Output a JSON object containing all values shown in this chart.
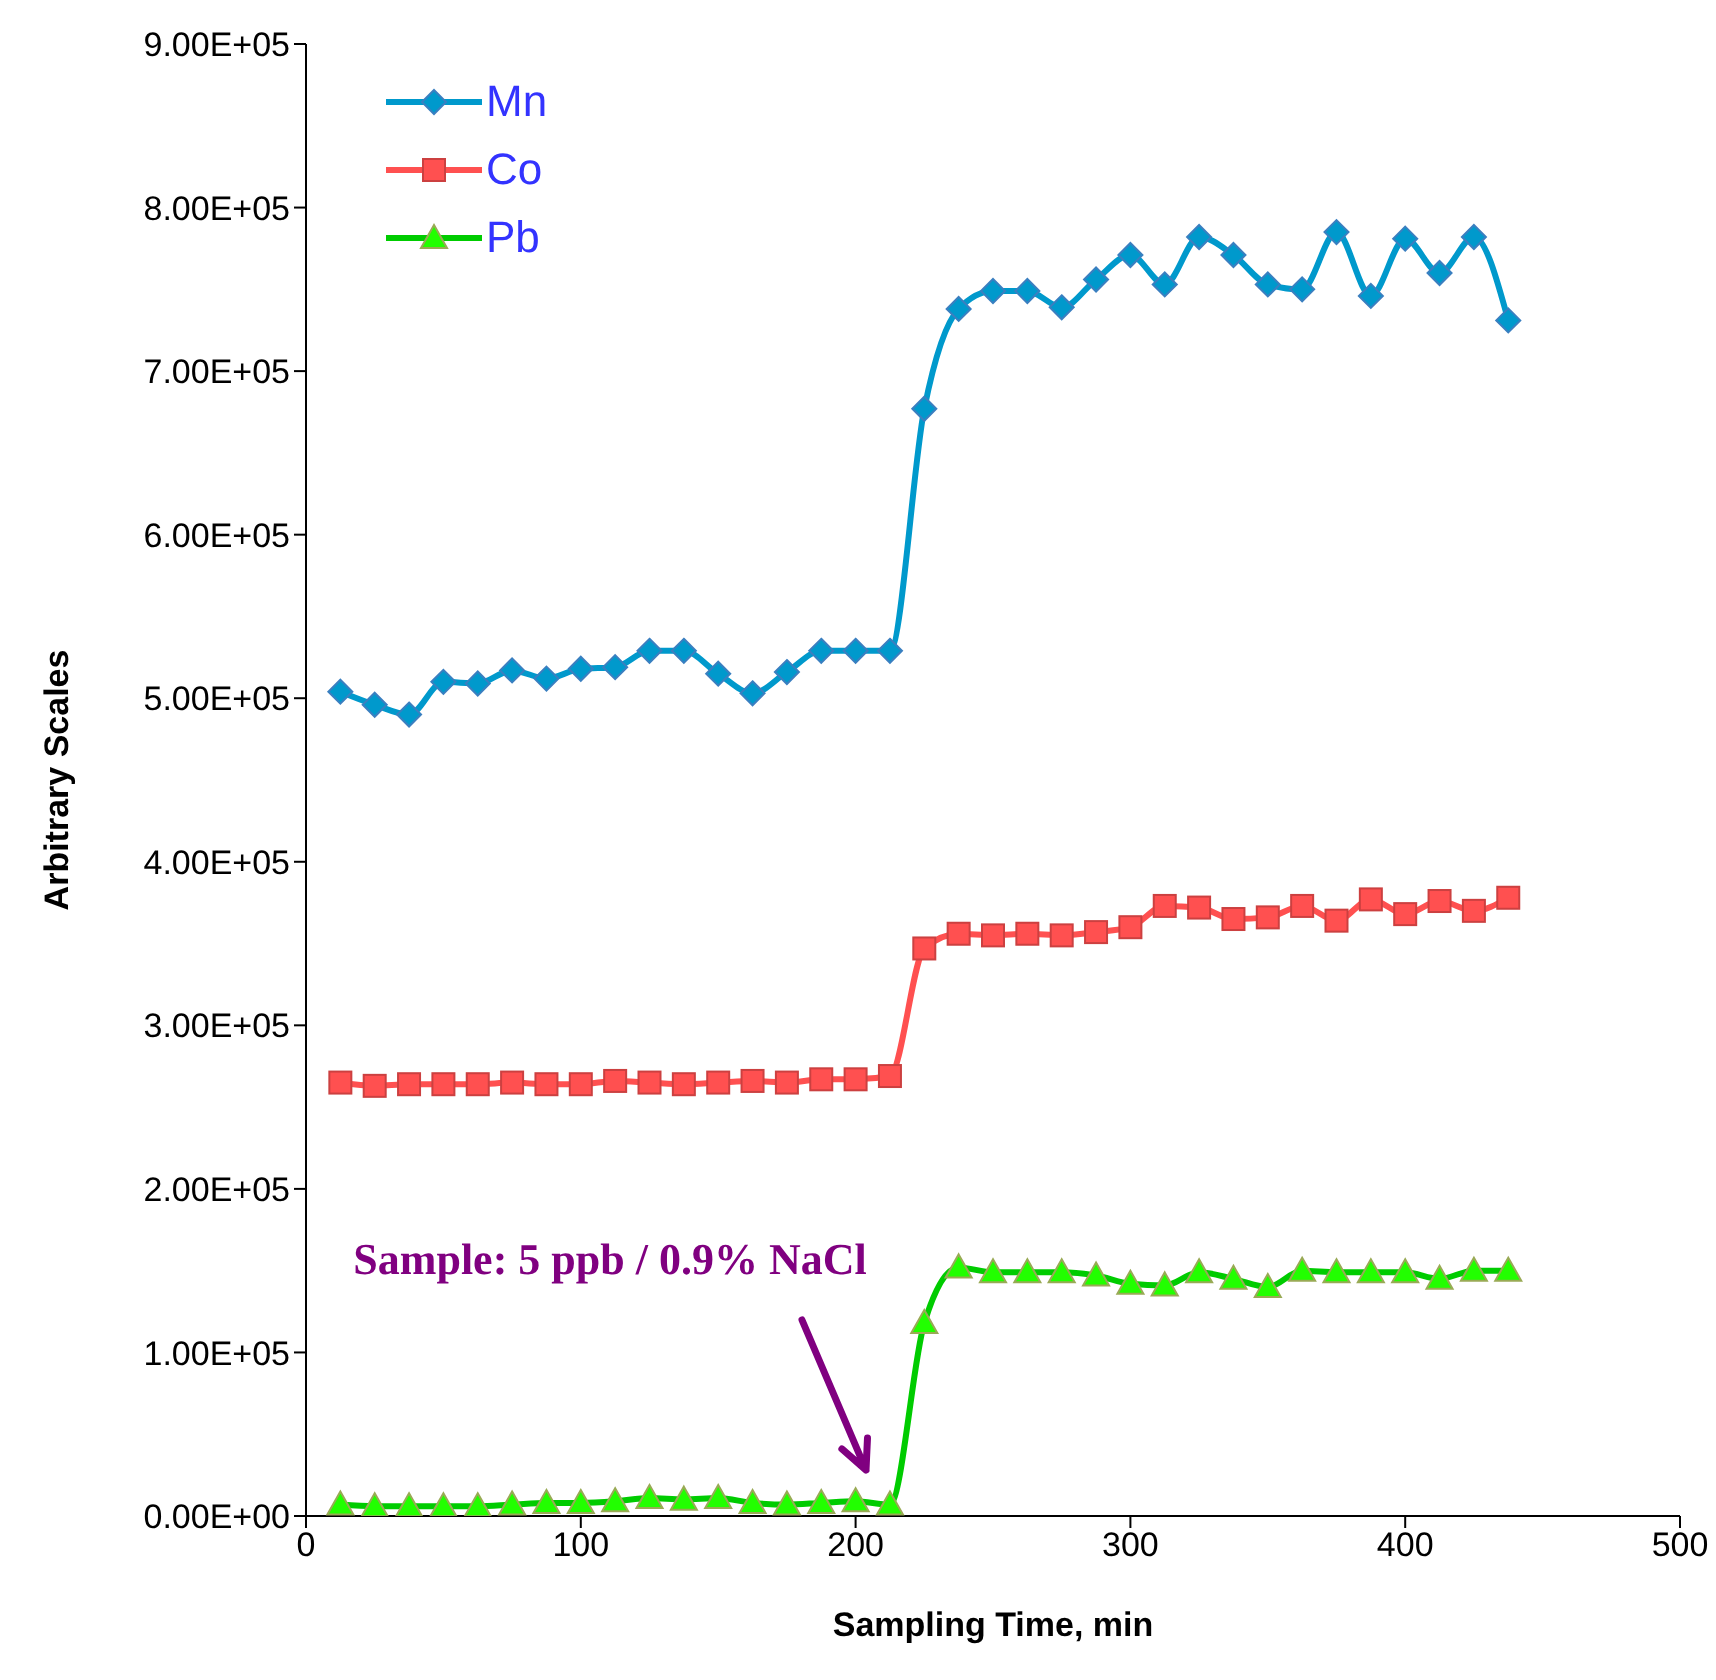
{
  "chart_data": {
    "type": "line",
    "xlabel": "Sampling Time, min",
    "ylabel": "Arbitrary Scales",
    "x": [
      12.5,
      25,
      37.5,
      50,
      62.5,
      75,
      87.5,
      100,
      112.5,
      125,
      137.5,
      150,
      162.5,
      175,
      187.5,
      200,
      212.5,
      225,
      237.5,
      250,
      262.5,
      275,
      287.5,
      300,
      312.5,
      325,
      337.5,
      350,
      362.5,
      375,
      387.5,
      400,
      412.5,
      425,
      437.5
    ],
    "series": [
      {
        "name": "Mn",
        "color": "#0099cc",
        "marker": "diamond",
        "values": [
          504000,
          496000,
          490000,
          510000,
          509000,
          517000,
          512000,
          518000,
          519000,
          529000,
          529000,
          515000,
          503000,
          516000,
          529000,
          529000,
          529000,
          677000,
          738000,
          749000,
          749000,
          739000,
          756000,
          771000,
          753000,
          782000,
          771000,
          753000,
          750000,
          785000,
          746000,
          781000,
          760000,
          782000,
          731000
        ]
      },
      {
        "name": "Co",
        "color": "#ff5050",
        "marker": "square",
        "values": [
          265000,
          263000,
          264000,
          264000,
          264000,
          265000,
          264000,
          264000,
          266000,
          265000,
          264000,
          265000,
          266000,
          265000,
          267000,
          267000,
          269000,
          347000,
          356000,
          355000,
          356000,
          355000,
          357000,
          360000,
          373000,
          372000,
          365000,
          366000,
          373000,
          364000,
          377000,
          368000,
          376000,
          370000,
          378000
        ]
      },
      {
        "name": "Pb",
        "color": "#00cc00",
        "marker": "triangle",
        "values": [
          7000,
          6000,
          6000,
          6000,
          6000,
          7000,
          8000,
          8000,
          9000,
          11000,
          10000,
          11000,
          8000,
          7000,
          8000,
          9000,
          7000,
          118000,
          152000,
          149000,
          149000,
          149000,
          147000,
          142000,
          141000,
          149000,
          145000,
          140000,
          150000,
          149000,
          149000,
          149000,
          145000,
          150000,
          150000
        ]
      }
    ],
    "xlim": [
      0,
      500
    ],
    "xticks": [
      0,
      100,
      200,
      300,
      400,
      500
    ],
    "ylim": [
      0,
      900000
    ],
    "yticks": [
      {
        "value": 0,
        "label": "0.00E+00"
      },
      {
        "value": 100000,
        "label": "1.00E+05"
      },
      {
        "value": 200000,
        "label": "2.00E+05"
      },
      {
        "value": 300000,
        "label": "3.00E+05"
      },
      {
        "value": 400000,
        "label": "4.00E+05"
      },
      {
        "value": 500000,
        "label": "5.00E+05"
      },
      {
        "value": 600000,
        "label": "6.00E+05"
      },
      {
        "value": 700000,
        "label": "7.00E+05"
      },
      {
        "value": 800000,
        "label": "8.00E+05"
      },
      {
        "value": 900000,
        "label": "9.00E+05"
      }
    ],
    "annotations": [
      "Sample: 5 ppb / 0.9% NaCl"
    ],
    "grid": false,
    "legend": "top left",
    "line_style": "solid"
  }
}
